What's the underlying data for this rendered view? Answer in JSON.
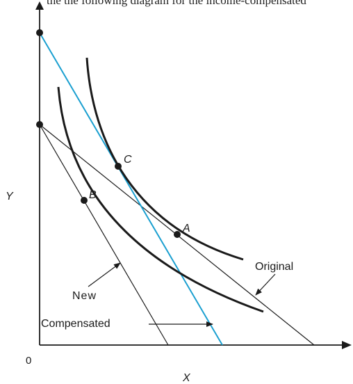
{
  "header_text": "the the following diagram for the income-compensated",
  "axes": {
    "x_label": "X",
    "y_label": "Y",
    "origin_label": "0"
  },
  "points": {
    "a": "A",
    "b": "B",
    "c": "C"
  },
  "labels": {
    "original": "Original",
    "new": "New",
    "compensated": "Compensated"
  },
  "colors": {
    "compensated_line": "#1a9fd0",
    "ink": "#1a1a1a"
  }
}
